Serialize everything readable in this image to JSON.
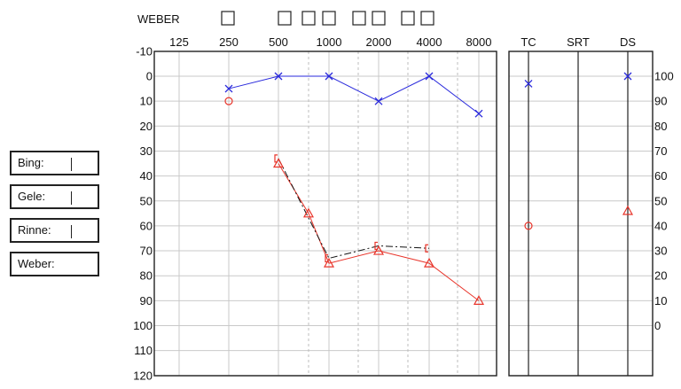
{
  "side_panel": {
    "fields": [
      {
        "label": "Bing:",
        "cursor": true
      },
      {
        "label": "Gele:",
        "cursor": true
      },
      {
        "label": "Rinne:",
        "cursor": true
      },
      {
        "label": "Weber:",
        "cursor": false
      }
    ]
  },
  "weber_label": "WEBER",
  "chart_data": {
    "type": "line",
    "title": "",
    "x_axis": {
      "categories": [
        "125",
        "250",
        "500",
        "1000",
        "2000",
        "4000",
        "8000"
      ],
      "position": "top",
      "intermediate_gridlines": [
        "750",
        "1500",
        "3000",
        "6000"
      ]
    },
    "y_axis": {
      "ticks": [
        -10,
        0,
        10,
        20,
        30,
        40,
        50,
        60,
        70,
        80,
        90,
        100,
        110,
        120
      ],
      "range": [
        -10,
        120
      ],
      "inverted": true
    },
    "series": [
      {
        "marker": "x",
        "color": "#2a2adc",
        "line": "solid",
        "points": [
          [
            250,
            5
          ],
          [
            500,
            0
          ],
          [
            1000,
            0
          ],
          [
            2000,
            10
          ],
          [
            4000,
            0
          ],
          [
            8000,
            15
          ]
        ]
      },
      {
        "marker": "circle",
        "color": "#e8342a",
        "line": "none",
        "points": [
          [
            250,
            10
          ]
        ]
      },
      {
        "marker": "triangle",
        "color": "#e8342a",
        "line": "solid",
        "points": [
          [
            500,
            35
          ],
          [
            750,
            55
          ],
          [
            1000,
            75
          ],
          [
            2000,
            70
          ],
          [
            4000,
            75
          ],
          [
            8000,
            90
          ]
        ]
      },
      {
        "marker": "bracket",
        "color": "#e8342a",
        "line": "dashdot",
        "line_color": "#111111",
        "points": [
          [
            500,
            33
          ],
          [
            1000,
            73
          ],
          [
            2000,
            68
          ],
          [
            4000,
            69
          ]
        ]
      }
    ],
    "speech_panel": {
      "columns": [
        "TC",
        "SRT",
        "DS"
      ],
      "right_scale": {
        "ticks": [
          100,
          90,
          80,
          70,
          60,
          50,
          40,
          30,
          20,
          10,
          0
        ]
      },
      "markers": [
        {
          "column": "TC",
          "marker": "x",
          "color": "#2a2adc",
          "level": 3
        },
        {
          "column": "DS",
          "marker": "x",
          "color": "#2a2adc",
          "level": 0
        },
        {
          "column": "TC",
          "marker": "circle",
          "color": "#e8342a",
          "level": 60
        },
        {
          "column": "DS",
          "marker": "triangle",
          "color": "#e8342a",
          "level": 54
        }
      ]
    }
  }
}
